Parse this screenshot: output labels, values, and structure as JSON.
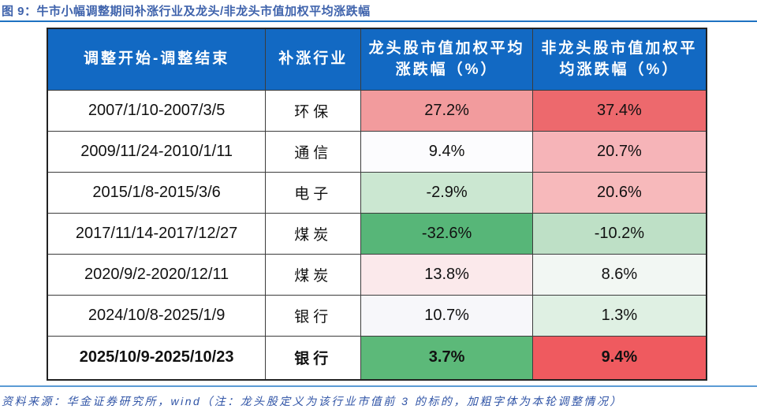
{
  "title": {
    "text": "图 9：牛市小幅调整期间补涨行业及龙头/非龙头市值加权平均涨跌幅"
  },
  "footer": {
    "text": "资料来源：华金证券研究所，wind（注：龙头股定义为该行业市值前 3 的标的，加粗字体为本轮调整情况）"
  },
  "colors": {
    "title_text": "#3F63AC",
    "footer_text": "#3054A6",
    "rule_top": "#1E72C2",
    "rule_bottom": "#5B9BD5",
    "header_bg": "#1269C3",
    "header_text": "#FFFFFF",
    "gain_strong": "#ED696D",
    "loss_strong": "#57B678"
  },
  "table": {
    "headers": [
      "调整开始-调整结束",
      "补涨行业",
      "龙头股市值加权平均涨跌幅（%）",
      "非龙头股市值加权平均涨跌幅（%）"
    ],
    "rows": [
      {
        "period": "2007/1/10-2007/3/5",
        "industry": "环保",
        "leader": "27.2%",
        "leader_bg": "#F29B9D",
        "non_leader": "37.4%",
        "non_leader_bg": "#ED696D",
        "weight": "normal"
      },
      {
        "period": "2009/11/24-2010/1/11",
        "industry": "通信",
        "leader": "9.4%",
        "leader_bg": "#FCFCFE",
        "non_leader": "20.7%",
        "non_leader_bg": "#F6B4B8",
        "weight": "normal"
      },
      {
        "period": "2015/1/8-2015/3/6",
        "industry": "电子",
        "leader": "-2.9%",
        "leader_bg": "#CBE7D1",
        "non_leader": "20.6%",
        "non_leader_bg": "#F7B9BB",
        "weight": "normal"
      },
      {
        "period": "2017/11/14-2017/12/27",
        "industry": "煤炭",
        "leader": "-32.6%",
        "leader_bg": "#57B678",
        "non_leader": "-10.2%",
        "non_leader_bg": "#BEE0C6",
        "weight": "normal"
      },
      {
        "period": "2020/9/2-2020/12/11",
        "industry": "煤炭",
        "leader": "13.8%",
        "leader_bg": "#FBE9EB",
        "non_leader": "8.6%",
        "non_leader_bg": "#F2F7F3",
        "weight": "normal"
      },
      {
        "period": "2024/10/8-2025/1/9",
        "industry": "银行",
        "leader": "10.7%",
        "leader_bg": "#F7F7FA",
        "non_leader": "1.3%",
        "non_leader_bg": "#DFF0E3",
        "weight": "normal"
      },
      {
        "period": "2025/10/9-2025/10/23",
        "industry": "银行",
        "leader": "3.7%",
        "leader_bg": "#5CB979",
        "non_leader": "9.4%",
        "non_leader_bg": "#EF5A5F",
        "weight": "bold"
      }
    ]
  },
  "chart_data": {
    "type": "table",
    "title": "图 9：牛市小幅调整期间补涨行业及龙头/非龙头市值加权平均涨跌幅",
    "columns": [
      "调整开始-调整结束",
      "补涨行业",
      "龙头股市值加权平均涨跌幅（%）",
      "非龙头股市值加权平均涨跌幅（%）"
    ],
    "rows": [
      [
        "2007/1/10-2007/3/5",
        "环保",
        27.2,
        37.4
      ],
      [
        "2009/11/24-2010/1/11",
        "通信",
        9.4,
        20.7
      ],
      [
        "2015/1/8-2015/3/6",
        "电子",
        -2.9,
        20.6
      ],
      [
        "2017/11/14-2017/12/27",
        "煤炭",
        -32.6,
        -10.2
      ],
      [
        "2020/9/2-2020/12/11",
        "煤炭",
        13.8,
        8.6
      ],
      [
        "2024/10/8-2025/1/9",
        "银行",
        10.7,
        1.3
      ],
      [
        "2025/10/9-2025/10/23",
        "银行",
        3.7,
        9.4
      ]
    ],
    "bold_row_index": 6,
    "cell_shading": "red = 上涨热力, green = 下跌热力"
  }
}
